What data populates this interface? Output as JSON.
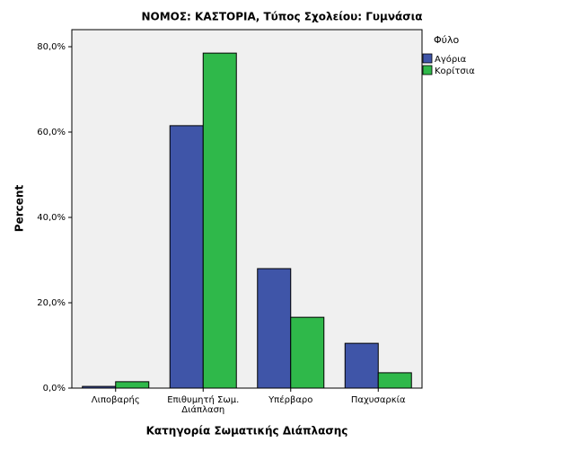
{
  "chart_data": {
    "type": "bar",
    "title": "ΝΟΜΟΣ: ΚΑΣΤΟΡΙΑ, Τύπος Σχολείου: Γυμνάσια",
    "x_label": "Κατηγορία Σωματικής Διάπλασης",
    "y_label": "Percent",
    "legend_title": "Φύλο",
    "categories": [
      "Λιποβαρής",
      "Επιθυμητή Σωμ. Διάπλαση",
      "Υπέρβαρο",
      "Παχυσαρκία"
    ],
    "series": [
      {
        "name": "Αγόρια",
        "color": "#3f55a8",
        "values": [
          0.4,
          61.5,
          28.0,
          10.5
        ]
      },
      {
        "name": "Κορίτσια",
        "color": "#2fb84a",
        "values": [
          1.5,
          78.5,
          16.6,
          3.6
        ]
      }
    ],
    "ylim": [
      0,
      84
    ],
    "yticks": [
      {
        "value": 0,
        "label": "0,0%"
      },
      {
        "value": 20,
        "label": "20,0%"
      },
      {
        "value": 40,
        "label": "40,0%"
      },
      {
        "value": 60,
        "label": "60,0%"
      },
      {
        "value": 80,
        "label": "80,0%"
      }
    ],
    "legend_position": "right"
  }
}
